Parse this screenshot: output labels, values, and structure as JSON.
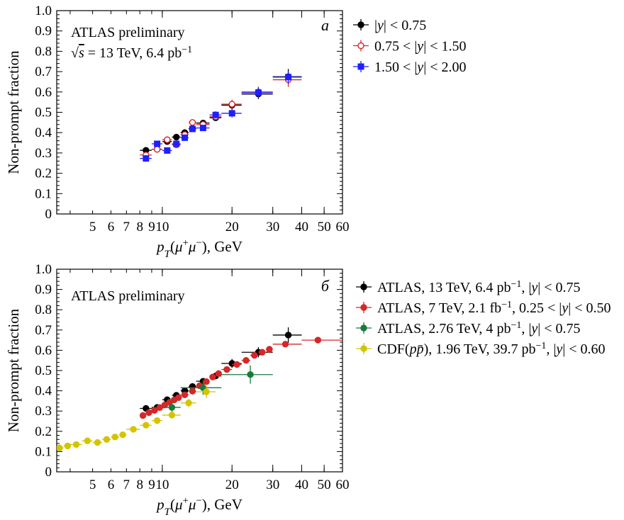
{
  "chart_data": [
    {
      "panel": "a",
      "type": "scatter",
      "title": "",
      "annotations": [
        "ATLAS preliminary",
        "√s = 13 TeV, 6.4 pb⁻¹"
      ],
      "panel_label": "a",
      "ylabel": "Non-prompt fraction",
      "xlabel": "p_T(μ⁺μ⁻), GeV",
      "xscale": "log",
      "xlim": [
        3.5,
        60
      ],
      "ylim": [
        0,
        1.0
      ],
      "x_ticks": [
        5,
        6,
        7,
        8,
        9,
        10,
        20,
        30,
        40,
        50,
        60
      ],
      "x_tick_labels": [
        "5",
        "6",
        "7",
        "8",
        "9",
        "10",
        "20",
        "30",
        "40",
        "50",
        "60"
      ],
      "y_ticks": [
        0,
        0.1,
        0.2,
        0.3,
        0.4,
        0.5,
        0.6,
        0.7,
        0.8,
        0.9,
        1.0
      ],
      "y_tick_labels": [
        "0",
        "0.1",
        "0.2",
        "0.3",
        "0.4",
        "0.5",
        "0.6",
        "0.7",
        "0.8",
        "0.9",
        "1.0"
      ],
      "grid": false,
      "legend_position": "outside-right",
      "series": [
        {
          "name": "|y| < 0.75",
          "marker": "filled-circle",
          "color": "#000000",
          "points": [
            {
              "x": 8.5,
              "y": 0.313,
              "xlo": 8.0,
              "xhi": 9.0,
              "err": 0.012
            },
            {
              "x": 9.5,
              "y": 0.318,
              "xlo": 9.0,
              "xhi": 10.0,
              "err": 0.012
            },
            {
              "x": 10.5,
              "y": 0.356,
              "xlo": 10.0,
              "xhi": 11.0,
              "err": 0.012
            },
            {
              "x": 11.5,
              "y": 0.378,
              "xlo": 11.0,
              "xhi": 12.0,
              "err": 0.012
            },
            {
              "x": 12.5,
              "y": 0.4,
              "xlo": 12.0,
              "xhi": 13.0,
              "err": 0.012
            },
            {
              "x": 13.5,
              "y": 0.421,
              "xlo": 13.0,
              "xhi": 14.0,
              "err": 0.012
            },
            {
              "x": 15.0,
              "y": 0.447,
              "xlo": 14.0,
              "xhi": 16.0,
              "err": 0.014
            },
            {
              "x": 17.0,
              "y": 0.473,
              "xlo": 16.0,
              "xhi": 18.0,
              "err": 0.016
            },
            {
              "x": 20.0,
              "y": 0.535,
              "xlo": 18.0,
              "xhi": 22.0,
              "err": 0.022
            },
            {
              "x": 26.0,
              "y": 0.59,
              "xlo": 22.0,
              "xhi": 30.0,
              "err": 0.025
            },
            {
              "x": 35.0,
              "y": 0.675,
              "xlo": 30.0,
              "xhi": 40.0,
              "err": 0.038
            }
          ]
        },
        {
          "name": "0.75 < |y| < 1.50",
          "marker": "open-circle",
          "color": "#d62728",
          "points": [
            {
              "x": 8.5,
              "y": 0.29,
              "xlo": 8.0,
              "xhi": 9.0,
              "err": 0.014
            },
            {
              "x": 9.5,
              "y": 0.318,
              "xlo": 9.0,
              "xhi": 10.0,
              "err": 0.013
            },
            {
              "x": 10.5,
              "y": 0.365,
              "xlo": 10.0,
              "xhi": 11.0,
              "err": 0.013
            },
            {
              "x": 11.5,
              "y": 0.34,
              "xlo": 11.0,
              "xhi": 12.0,
              "err": 0.013
            },
            {
              "x": 12.5,
              "y": 0.39,
              "xlo": 12.0,
              "xhi": 13.0,
              "err": 0.013
            },
            {
              "x": 13.5,
              "y": 0.45,
              "xlo": 13.0,
              "xhi": 14.0,
              "err": 0.014
            },
            {
              "x": 15.0,
              "y": 0.44,
              "xlo": 14.0,
              "xhi": 16.0,
              "err": 0.015
            },
            {
              "x": 17.0,
              "y": 0.478,
              "xlo": 16.0,
              "xhi": 18.0,
              "err": 0.017
            },
            {
              "x": 20.0,
              "y": 0.54,
              "xlo": 18.0,
              "xhi": 22.0,
              "err": 0.022
            },
            {
              "x": 26.0,
              "y": 0.6,
              "xlo": 22.0,
              "xhi": 30.0,
              "err": 0.026
            },
            {
              "x": 35.0,
              "y": 0.66,
              "xlo": 30.0,
              "xhi": 40.0,
              "err": 0.035
            }
          ]
        },
        {
          "name": "1.50 < |y| < 2.00",
          "marker": "filled-square",
          "color": "#1f1fff",
          "points": [
            {
              "x": 8.5,
              "y": 0.273,
              "xlo": 8.0,
              "xhi": 9.0,
              "err": 0.016
            },
            {
              "x": 9.5,
              "y": 0.345,
              "xlo": 9.0,
              "xhi": 10.0,
              "err": 0.014
            },
            {
              "x": 10.5,
              "y": 0.312,
              "xlo": 10.0,
              "xhi": 11.0,
              "err": 0.014
            },
            {
              "x": 11.5,
              "y": 0.345,
              "xlo": 11.0,
              "xhi": 12.0,
              "err": 0.014
            },
            {
              "x": 12.5,
              "y": 0.375,
              "xlo": 12.0,
              "xhi": 13.0,
              "err": 0.014
            },
            {
              "x": 13.5,
              "y": 0.418,
              "xlo": 13.0,
              "xhi": 14.0,
              "err": 0.015
            },
            {
              "x": 15.0,
              "y": 0.423,
              "xlo": 14.0,
              "xhi": 16.0,
              "err": 0.015
            },
            {
              "x": 17.0,
              "y": 0.487,
              "xlo": 16.0,
              "xhi": 18.0,
              "err": 0.018
            },
            {
              "x": 20.0,
              "y": 0.495,
              "xlo": 18.0,
              "xhi": 22.0,
              "err": 0.02
            },
            {
              "x": 26.0,
              "y": 0.597,
              "xlo": 22.0,
              "xhi": 30.0,
              "err": 0.025
            },
            {
              "x": 35.0,
              "y": 0.673,
              "xlo": 30.0,
              "xhi": 40.0,
              "err": 0.03
            }
          ]
        }
      ]
    },
    {
      "panel": "b",
      "type": "scatter",
      "title": "",
      "annotations": [
        "ATLAS preliminary"
      ],
      "panel_label": "б",
      "ylabel": "Non-prompt fraction",
      "xlabel": "p_T(μ⁺μ⁻), GeV",
      "xscale": "log",
      "xlim": [
        3.5,
        60
      ],
      "ylim": [
        0,
        1.0
      ],
      "x_ticks": [
        5,
        6,
        7,
        8,
        9,
        10,
        20,
        30,
        40,
        50,
        60
      ],
      "x_tick_labels": [
        "5",
        "6",
        "7",
        "8",
        "9",
        "10",
        "20",
        "30",
        "40",
        "50",
        "60"
      ],
      "y_ticks": [
        0,
        0.1,
        0.2,
        0.3,
        0.4,
        0.5,
        0.6,
        0.7,
        0.8,
        0.9,
        1.0
      ],
      "y_tick_labels": [
        "0",
        "0.1",
        "0.2",
        "0.3",
        "0.4",
        "0.5",
        "0.6",
        "0.7",
        "0.8",
        "0.9",
        "1.0"
      ],
      "grid": false,
      "legend_position": "outside-right",
      "series": [
        {
          "name": "ATLAS, 13 TeV, 6.4 pb⁻¹, |y| < 0.75",
          "marker": "filled-circle",
          "color": "#000000",
          "points": [
            {
              "x": 8.5,
              "y": 0.313,
              "xlo": 8.0,
              "xhi": 9.0,
              "err": 0.012
            },
            {
              "x": 9.5,
              "y": 0.318,
              "xlo": 9.0,
              "xhi": 10.0,
              "err": 0.012
            },
            {
              "x": 10.5,
              "y": 0.356,
              "xlo": 10.0,
              "xhi": 11.0,
              "err": 0.012
            },
            {
              "x": 11.5,
              "y": 0.378,
              "xlo": 11.0,
              "xhi": 12.0,
              "err": 0.012
            },
            {
              "x": 12.5,
              "y": 0.4,
              "xlo": 12.0,
              "xhi": 13.0,
              "err": 0.012
            },
            {
              "x": 13.5,
              "y": 0.421,
              "xlo": 13.0,
              "xhi": 14.0,
              "err": 0.012
            },
            {
              "x": 15.0,
              "y": 0.447,
              "xlo": 14.0,
              "xhi": 16.0,
              "err": 0.014
            },
            {
              "x": 17.0,
              "y": 0.473,
              "xlo": 16.0,
              "xhi": 18.0,
              "err": 0.016
            },
            {
              "x": 20.0,
              "y": 0.535,
              "xlo": 18.0,
              "xhi": 22.0,
              "err": 0.022
            },
            {
              "x": 26.0,
              "y": 0.59,
              "xlo": 22.0,
              "xhi": 30.0,
              "err": 0.025
            },
            {
              "x": 35.0,
              "y": 0.675,
              "xlo": 30.0,
              "xhi": 40.0,
              "err": 0.038
            }
          ]
        },
        {
          "name": "ATLAS, 7 TeV, 2.1 fb⁻¹, 0.25 < |y| < 0.50",
          "marker": "filled-circle",
          "color": "#d62728",
          "points": [
            {
              "x": 8.25,
              "y": 0.278,
              "xlo": 8.0,
              "xhi": 8.5,
              "err": 0.006
            },
            {
              "x": 8.75,
              "y": 0.292,
              "xlo": 8.5,
              "xhi": 9.0,
              "err": 0.006
            },
            {
              "x": 9.25,
              "y": 0.303,
              "xlo": 9.0,
              "xhi": 9.5,
              "err": 0.006
            },
            {
              "x": 9.75,
              "y": 0.317,
              "xlo": 9.5,
              "xhi": 10.0,
              "err": 0.006
            },
            {
              "x": 10.25,
              "y": 0.33,
              "xlo": 10.0,
              "xhi": 10.5,
              "err": 0.006
            },
            {
              "x": 10.75,
              "y": 0.343,
              "xlo": 10.5,
              "xhi": 11.0,
              "err": 0.006
            },
            {
              "x": 11.25,
              "y": 0.355,
              "xlo": 11.0,
              "xhi": 11.5,
              "err": 0.006
            },
            {
              "x": 11.75,
              "y": 0.366,
              "xlo": 11.5,
              "xhi": 12.0,
              "err": 0.006
            },
            {
              "x": 12.5,
              "y": 0.38,
              "xlo": 12.0,
              "xhi": 13.0,
              "err": 0.006
            },
            {
              "x": 13.5,
              "y": 0.398,
              "xlo": 13.0,
              "xhi": 14.0,
              "err": 0.006
            },
            {
              "x": 14.5,
              "y": 0.425,
              "xlo": 14.0,
              "xhi": 15.0,
              "err": 0.007
            },
            {
              "x": 15.5,
              "y": 0.445,
              "xlo": 15.0,
              "xhi": 16.0,
              "err": 0.007
            },
            {
              "x": 16.5,
              "y": 0.468,
              "xlo": 16.0,
              "xhi": 17.0,
              "err": 0.007
            },
            {
              "x": 17.5,
              "y": 0.485,
              "xlo": 17.0,
              "xhi": 18.0,
              "err": 0.007
            },
            {
              "x": 19.0,
              "y": 0.505,
              "xlo": 18.0,
              "xhi": 20.0,
              "err": 0.008
            },
            {
              "x": 21.0,
              "y": 0.53,
              "xlo": 20.0,
              "xhi": 22.0,
              "err": 0.008
            },
            {
              "x": 23.0,
              "y": 0.55,
              "xlo": 22.0,
              "xhi": 24.0,
              "err": 0.009
            },
            {
              "x": 25.0,
              "y": 0.575,
              "xlo": 24.0,
              "xhi": 26.0,
              "err": 0.01
            },
            {
              "x": 27.0,
              "y": 0.59,
              "xlo": 26.0,
              "xhi": 28.0,
              "err": 0.011
            },
            {
              "x": 29.0,
              "y": 0.605,
              "xlo": 28.0,
              "xhi": 30.0,
              "err": 0.012
            },
            {
              "x": 34.0,
              "y": 0.63,
              "xlo": 30.0,
              "xhi": 40.0,
              "err": 0.012
            },
            {
              "x": 47.0,
              "y": 0.65,
              "xlo": 40.0,
              "xhi": 70.0,
              "err": 0.014
            }
          ]
        },
        {
          "name": "ATLAS, 2.76 TeV, 4 pb⁻¹, |y| < 0.75",
          "marker": "filled-circle",
          "color": "#1a7a3c",
          "points": [
            {
              "x": 11.0,
              "y": 0.318,
              "xlo": 10.0,
              "xhi": 12.0,
              "err": 0.025
            },
            {
              "x": 15.0,
              "y": 0.415,
              "xlo": 12.0,
              "xhi": 18.0,
              "err": 0.035
            },
            {
              "x": 24.0,
              "y": 0.48,
              "xlo": 18.0,
              "xhi": 30.0,
              "err": 0.045
            }
          ]
        },
        {
          "name": "CDF(pp̄), 1.96 TeV, 39.7 pb⁻¹, |y| < 0.60",
          "marker": "filled-circle",
          "color": "#d4c400",
          "points": [
            {
              "x": 3.6,
              "y": 0.118,
              "xlo": 3.5,
              "xhi": 3.75,
              "err": 0.008
            },
            {
              "x": 3.9,
              "y": 0.128,
              "xlo": 3.75,
              "xhi": 4.0,
              "err": 0.008
            },
            {
              "x": 4.25,
              "y": 0.135,
              "xlo": 4.0,
              "xhi": 4.5,
              "err": 0.008
            },
            {
              "x": 4.75,
              "y": 0.153,
              "xlo": 4.5,
              "xhi": 5.0,
              "err": 0.008
            },
            {
              "x": 5.25,
              "y": 0.145,
              "xlo": 5.0,
              "xhi": 5.5,
              "err": 0.008
            },
            {
              "x": 5.75,
              "y": 0.16,
              "xlo": 5.5,
              "xhi": 6.0,
              "err": 0.008
            },
            {
              "x": 6.25,
              "y": 0.172,
              "xlo": 6.0,
              "xhi": 6.5,
              "err": 0.008
            },
            {
              "x": 6.75,
              "y": 0.183,
              "xlo": 6.5,
              "xhi": 7.0,
              "err": 0.009
            },
            {
              "x": 7.5,
              "y": 0.21,
              "xlo": 7.0,
              "xhi": 8.0,
              "err": 0.009
            },
            {
              "x": 8.5,
              "y": 0.23,
              "xlo": 8.0,
              "xhi": 9.0,
              "err": 0.01
            },
            {
              "x": 9.5,
              "y": 0.253,
              "xlo": 9.0,
              "xhi": 10.0,
              "err": 0.011
            },
            {
              "x": 11.0,
              "y": 0.28,
              "xlo": 10.0,
              "xhi": 12.0,
              "err": 0.015
            },
            {
              "x": 13.0,
              "y": 0.34,
              "xlo": 12.0,
              "xhi": 14.0,
              "err": 0.02
            },
            {
              "x": 15.5,
              "y": 0.395,
              "xlo": 14.0,
              "xhi": 17.0,
              "err": 0.03
            }
          ]
        }
      ]
    }
  ]
}
